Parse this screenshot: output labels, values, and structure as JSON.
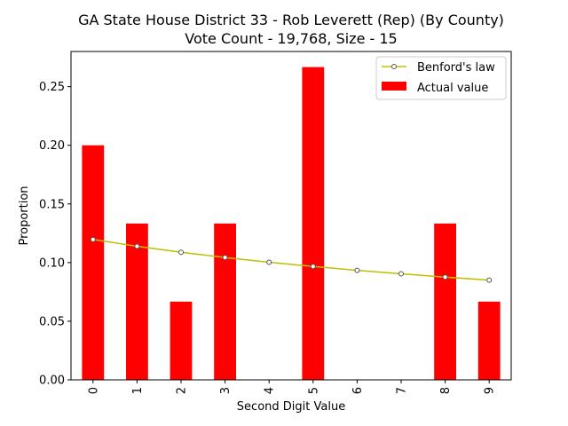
{
  "chart_data": {
    "type": "bar",
    "title_line1": "GA State House District 33 - Rob Leverett (Rep) (By County)",
    "title_line2": "Vote Count - 19,768, Size - 15",
    "xlabel": "Second Digit Value",
    "ylabel": "Proportion",
    "categories": [
      "0",
      "1",
      "2",
      "3",
      "4",
      "5",
      "6",
      "7",
      "8",
      "9"
    ],
    "ylim": [
      0,
      0.28
    ],
    "yticks": [
      0.0,
      0.05,
      0.1,
      0.15,
      0.2,
      0.25
    ],
    "ytick_labels": [
      "0.00",
      "0.05",
      "0.10",
      "0.15",
      "0.20",
      "0.25"
    ],
    "grid": false,
    "legend_position": "top-right",
    "series": [
      {
        "name": "Actual value",
        "type": "bar",
        "color": "#ff0000",
        "values": [
          0.2,
          0.1333,
          0.0667,
          0.1333,
          0.0,
          0.2667,
          0.0,
          0.0,
          0.1333,
          0.0667
        ]
      },
      {
        "name": "Benford's law",
        "type": "line",
        "color": "#bfbf00",
        "values": [
          0.1197,
          0.1139,
          0.1088,
          0.1043,
          0.1003,
          0.0967,
          0.0934,
          0.0904,
          0.0876,
          0.085
        ]
      }
    ]
  }
}
